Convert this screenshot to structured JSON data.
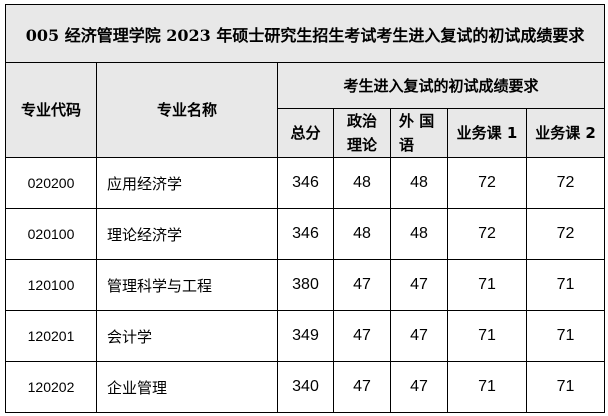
{
  "title": "005  经济管理学院 2023 年硕士研究生招生考试考生进入复试的初试成绩要求",
  "headers": {
    "code": "专业代码",
    "name": "专业名称",
    "group": "考生进入复试的初试成绩要求",
    "total": "总分",
    "politics": "政治理论",
    "foreign": "外 国语",
    "course1": "业务课 1",
    "course2": "业务课 2"
  },
  "rows": [
    {
      "code": "020200",
      "name": "应用经济学",
      "total": "346",
      "politics": "48",
      "foreign": "48",
      "course1": "72",
      "course2": "72"
    },
    {
      "code": "020100",
      "name": "理论经济学",
      "total": "346",
      "politics": "48",
      "foreign": "48",
      "course1": "72",
      "course2": "72"
    },
    {
      "code": "120100",
      "name": "管理科学与工程",
      "total": "380",
      "politics": "47",
      "foreign": "47",
      "course1": "71",
      "course2": "71"
    },
    {
      "code": "120201",
      "name": "会计学",
      "total": "349",
      "politics": "47",
      "foreign": "47",
      "course1": "71",
      "course2": "71"
    },
    {
      "code": "120202",
      "name": "企业管理",
      "total": "340",
      "politics": "47",
      "foreign": "47",
      "course1": "71",
      "course2": "71"
    }
  ]
}
